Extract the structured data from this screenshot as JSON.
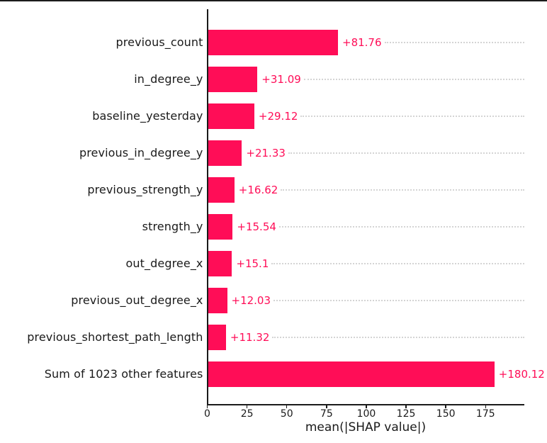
{
  "chart_data": {
    "type": "bar",
    "orientation": "horizontal",
    "title": "",
    "xlabel": "mean(|SHAP value|)",
    "ylabel": "",
    "xlim": [
      0,
      199.6
    ],
    "xticks": [
      0,
      25,
      50,
      75,
      100,
      125,
      150,
      175
    ],
    "grid": "horizontal dotted gridline per bar row, right of value label",
    "legend": "none",
    "colors": {
      "bar": "#ff0d57",
      "value_text": "#ff0d57",
      "axis_text": "#1a1a1a",
      "gridline": "#d4d4d4"
    },
    "categories": [
      "previous_count",
      "in_degree_y",
      "baseline_yesterday",
      "previous_in_degree_y",
      "previous_strength_y",
      "strength_y",
      "out_degree_x",
      "previous_out_degree_x",
      "previous_shortest_path_length",
      "Sum of 1023 other features"
    ],
    "values": [
      81.76,
      31.09,
      29.12,
      21.33,
      16.62,
      15.54,
      15.1,
      12.03,
      11.32,
      180.12
    ],
    "value_labels": [
      "+81.76",
      "+31.09",
      "+29.12",
      "+21.33",
      "+16.62",
      "+15.54",
      "+15.1",
      "+12.03",
      "+11.32",
      "+180.12"
    ]
  }
}
